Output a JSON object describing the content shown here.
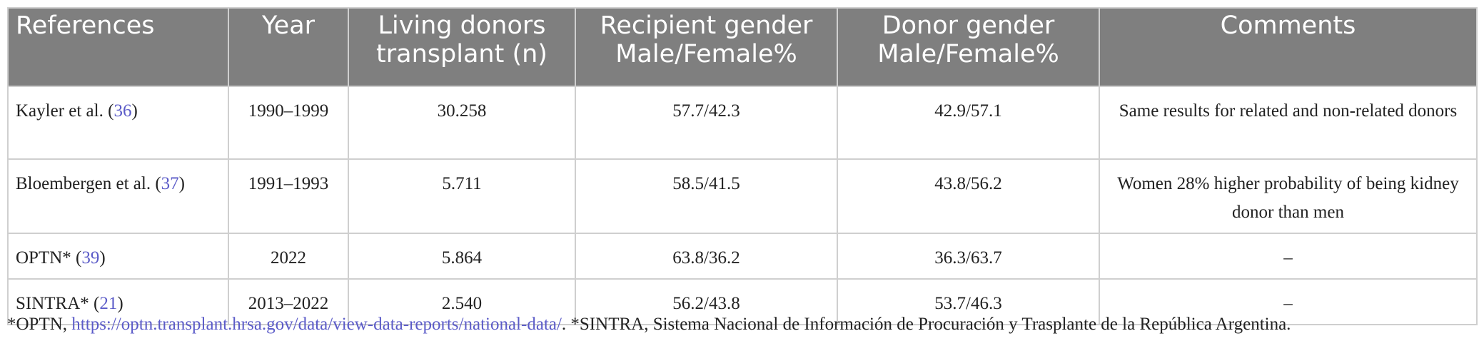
{
  "table": {
    "headers": [
      "References",
      "Year",
      "Living donors transplant (n)",
      "Recipient gender Male/Female%",
      "Donor gender Male/Female%",
      "Comments"
    ],
    "rows": [
      {
        "reference": "Kayler et al.",
        "ref_number": "36",
        "year": "1990–1999",
        "living_donors": "30.258",
        "recipient_gender": "57.7/42.3",
        "donor_gender": "42.9/57.1",
        "comments": "Same results for related and non-related donors"
      },
      {
        "reference": "Bloembergen et al.",
        "ref_number": "37",
        "year": "1991–1993",
        "living_donors": "5.711",
        "recipient_gender": "58.5/41.5",
        "donor_gender": "43.8/56.2",
        "comments": "Women 28% higher probability of being kidney donor than men"
      },
      {
        "reference": "OPTN*",
        "ref_number": "39",
        "year": "2022",
        "living_donors": "5.864",
        "recipient_gender": "63.8/36.2",
        "donor_gender": "36.3/63.7",
        "comments": "–"
      },
      {
        "reference": "SINTRA*",
        "ref_number": "21",
        "year": "2013–2022",
        "living_donors": "2.540",
        "recipient_gender": "56.2/43.8",
        "donor_gender": "53.7/46.3",
        "comments": "–"
      }
    ]
  },
  "footnote": {
    "prefix": "*OPTN, ",
    "url": "https://optn.transplant.hrsa.gov/data/view-data-reports/national-data/",
    "suffix": ". *SINTRA, Sistema Nacional de Información de Procuración y Trasplante de la República Argentina."
  },
  "colors": {
    "header_bg": "#7f7f7f",
    "header_text": "#ffffff",
    "link": "#5b5bc8",
    "border": "#cfcfcf"
  }
}
